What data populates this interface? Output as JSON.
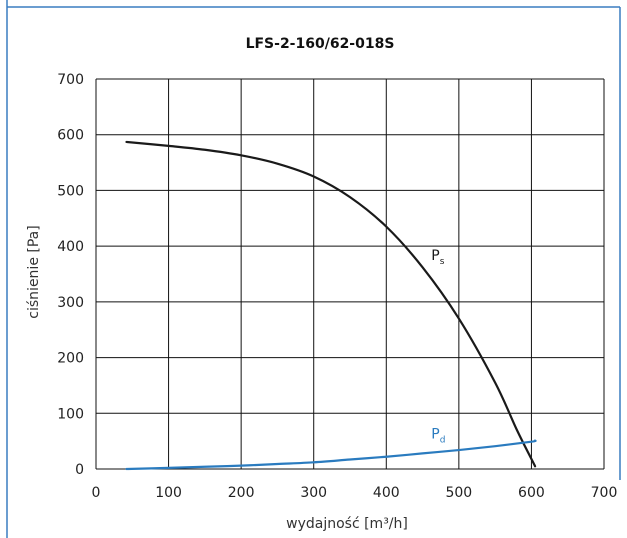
{
  "chart_data": {
    "type": "line",
    "title": "LFS-2-160/62-018S",
    "xlabel": "wydajność [m³/h]",
    "ylabel": "ciśnienie [Pa]",
    "xlim": [
      0,
      700
    ],
    "ylim": [
      0,
      700
    ],
    "x_ticks": [
      "0",
      "100",
      "200",
      "300",
      "400",
      "500",
      "600",
      "700"
    ],
    "y_ticks": [
      "0",
      "100",
      "200",
      "300",
      "400",
      "500",
      "600",
      "700"
    ],
    "grid": true,
    "series": [
      {
        "name": "Ps",
        "color": "#1a1a1a",
        "x": [
          42,
          100,
          150,
          200,
          250,
          300,
          350,
          400,
          450,
          500,
          550,
          580,
          600,
          605
        ],
        "y": [
          587,
          580,
          573,
          563,
          548,
          525,
          488,
          435,
          362,
          270,
          155,
          70,
          18,
          5
        ]
      },
      {
        "name": "Pd",
        "color": "#2a7bbf",
        "x": [
          42,
          100,
          150,
          200,
          250,
          300,
          350,
          400,
          450,
          500,
          550,
          600,
          605
        ],
        "y": [
          0,
          2,
          4,
          6,
          9,
          12,
          17,
          22,
          28,
          34,
          41,
          49,
          51
        ]
      }
    ],
    "labels": [
      {
        "text": "P",
        "sub": "s",
        "series": "Ps",
        "at": [
          462,
          375
        ]
      },
      {
        "text": "P",
        "sub": "d",
        "series": "Pd",
        "at": [
          462,
          55
        ]
      }
    ]
  }
}
